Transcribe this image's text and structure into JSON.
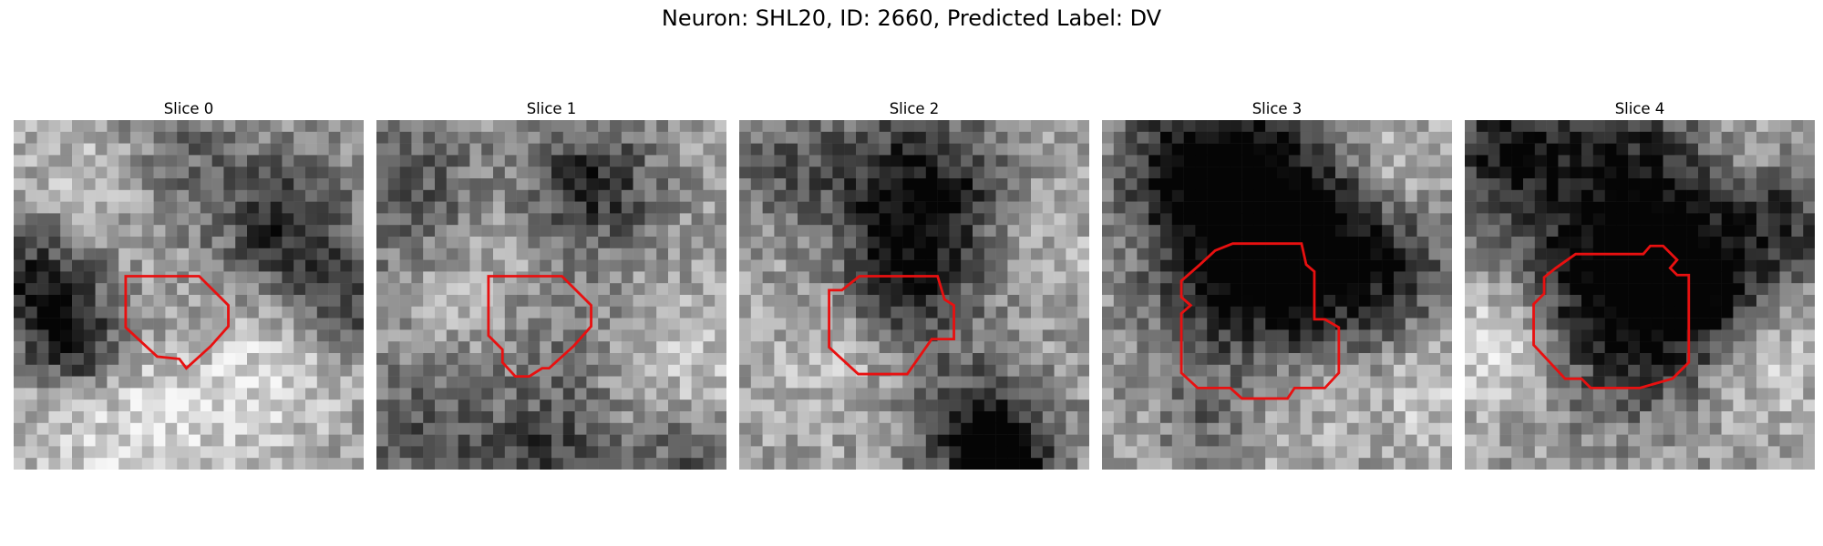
{
  "figure": {
    "title": "Neuron: SHL20, ID: 2660, Predicted Label: DV"
  },
  "panels": [
    {
      "title": "Slice 0",
      "roi_color": "#e81010",
      "icon": "roi-outline"
    },
    {
      "title": "Slice 1",
      "roi_color": "#e81010",
      "icon": "roi-outline"
    },
    {
      "title": "Slice 2",
      "roi_color": "#e81010",
      "icon": "roi-outline"
    },
    {
      "title": "Slice 3",
      "roi_color": "#e81010",
      "icon": "roi-outline"
    },
    {
      "title": "Slice 4",
      "roi_color": "#e81010",
      "icon": "roi-outline"
    }
  ]
}
